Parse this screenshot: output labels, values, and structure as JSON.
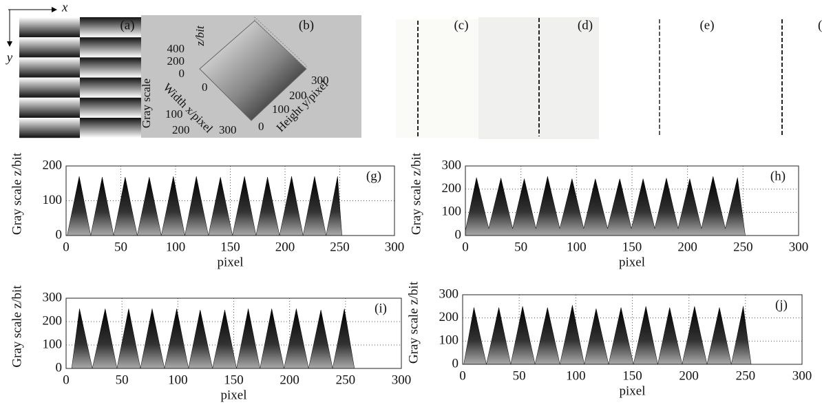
{
  "axis_marks": {
    "x": "x",
    "y": "y"
  },
  "image_panels": [
    {
      "label": "(a)"
    },
    {
      "label": "(b)"
    },
    {
      "label": "(c)"
    },
    {
      "label": "(d)"
    },
    {
      "label": "(e)"
    },
    {
      "label": "("
    }
  ],
  "surface_plot": {
    "z_ticks": [
      400,
      200,
      0
    ],
    "z_label": "z/bit",
    "gray_label": "Gray scale",
    "x_label": "Width x/pixel",
    "x_ticks": [
      100,
      200,
      300
    ],
    "y_label": "Height y/pixel",
    "y_ticks": [
      0,
      100,
      200,
      300
    ],
    "corner_tick": 0
  },
  "chart_data": [
    {
      "type": "area",
      "panel_label": "(g)",
      "xlabel": "pixel",
      "ylabel": "Gray scale z/bit",
      "x": [
        1,
        12,
        22.5,
        33,
        43.5,
        54,
        65,
        76,
        87,
        98,
        108.5,
        119,
        130,
        141,
        152,
        163,
        173.5,
        184,
        195,
        206,
        216.5,
        227,
        237.5,
        248,
        252
      ],
      "values": [
        0,
        170,
        0,
        168,
        0,
        168,
        0,
        168,
        0,
        170,
        0,
        170,
        0,
        168,
        0,
        170,
        0,
        168,
        0,
        170,
        0,
        170,
        0,
        170,
        0
      ],
      "xlim": [
        0,
        300
      ],
      "xticks": [
        0,
        50,
        100,
        150,
        200,
        250,
        300
      ],
      "ylim": [
        0,
        200
      ],
      "yticks": [
        0,
        100,
        200
      ],
      "grid": true,
      "color": "#000000"
    },
    {
      "type": "area",
      "panel_label": "(h)",
      "xlabel": "pixel",
      "ylabel": "Gray scale z/bit",
      "x": [
        0,
        10,
        21,
        32,
        42.5,
        53,
        63.5,
        74,
        85,
        96,
        106.5,
        117,
        128,
        139,
        149.5,
        160,
        170.5,
        181,
        191.5,
        202,
        212.5,
        223,
        234,
        245,
        252
      ],
      "values": [
        20,
        250,
        30,
        248,
        30,
        245,
        30,
        255,
        30,
        245,
        30,
        245,
        30,
        245,
        30,
        245,
        30,
        248,
        30,
        245,
        30,
        255,
        30,
        250,
        0
      ],
      "xlim": [
        0,
        300
      ],
      "xticks": [
        0,
        50,
        100,
        150,
        200,
        250,
        300
      ],
      "ylim": [
        0,
        300
      ],
      "yticks": [
        0,
        100,
        200,
        300
      ],
      "grid": true,
      "color": "#000000"
    },
    {
      "type": "area",
      "panel_label": "(i)",
      "xlabel": "pixel",
      "ylabel": "Gray scale z/bit",
      "x": [
        5,
        12,
        23.5,
        35,
        45.5,
        56,
        66.5,
        77,
        88,
        99,
        109.5,
        120,
        131,
        142,
        152.5,
        163,
        173.5,
        184,
        195,
        206,
        217,
        228,
        238.5,
        249,
        258
      ],
      "values": [
        0,
        255,
        0,
        255,
        0,
        255,
        0,
        255,
        0,
        255,
        0,
        250,
        0,
        250,
        0,
        255,
        0,
        255,
        0,
        255,
        0,
        250,
        0,
        255,
        0
      ],
      "xlim": [
        0,
        300
      ],
      "xticks": [
        0,
        50,
        100,
        150,
        200,
        250,
        300
      ],
      "ylim": [
        0,
        300
      ],
      "yticks": [
        0,
        100,
        200,
        300
      ],
      "grid": true,
      "color": "#000000"
    },
    {
      "type": "area",
      "panel_label": "(j)",
      "xlabel": "pixel",
      "ylabel": "Gray scale z/bit",
      "x": [
        1,
        10,
        21,
        32,
        42.5,
        53,
        64,
        75,
        86,
        97,
        107.5,
        118,
        129,
        140,
        151,
        162,
        172.5,
        183,
        194,
        205,
        216,
        227,
        237.5,
        248,
        255
      ],
      "values": [
        0,
        245,
        0,
        245,
        0,
        250,
        0,
        245,
        0,
        255,
        0,
        240,
        0,
        245,
        0,
        250,
        0,
        245,
        0,
        250,
        0,
        245,
        0,
        250,
        0
      ],
      "xlim": [
        0,
        300
      ],
      "xticks": [
        0,
        50,
        100,
        150,
        200,
        250,
        300
      ],
      "ylim": [
        0,
        300
      ],
      "yticks": [
        0,
        100,
        200,
        300
      ],
      "grid": true,
      "color": "#000000"
    }
  ]
}
